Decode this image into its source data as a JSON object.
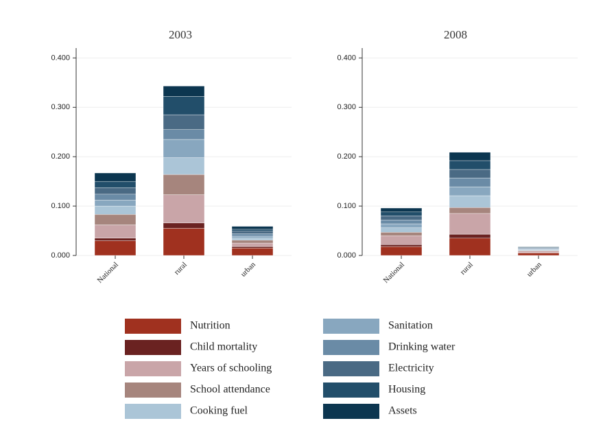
{
  "chart_data": [
    {
      "type": "bar",
      "stacked": true,
      "title": "2003",
      "categories": [
        "National",
        "rural",
        "urban"
      ],
      "ylim": [
        0,
        0.42
      ],
      "yticks": [
        {
          "value": 0,
          "label": "0.000"
        },
        {
          "value": 0.1,
          "label": "0.100"
        },
        {
          "value": 0.2,
          "label": "0.200"
        },
        {
          "value": 0.3,
          "label": "0.300"
        },
        {
          "value": 0.4,
          "label": "0.400"
        }
      ],
      "grid": true,
      "series": [
        {
          "name": "Nutrition",
          "color": "#a0311f",
          "values": [
            0.03,
            0.055,
            0.015
          ]
        },
        {
          "name": "Child mortality",
          "color": "#6a2221",
          "values": [
            0.005,
            0.011,
            0.003
          ]
        },
        {
          "name": "Years of schooling",
          "color": "#c9a5a8",
          "values": [
            0.027,
            0.057,
            0.007
          ]
        },
        {
          "name": "School attendance",
          "color": "#a6857d",
          "values": [
            0.021,
            0.041,
            0.006
          ]
        },
        {
          "name": "Cooking fuel",
          "color": "#abc5d7",
          "values": [
            0.017,
            0.034,
            0.004
          ]
        },
        {
          "name": "Sanitation",
          "color": "#88a7bf",
          "values": [
            0.012,
            0.037,
            0.004
          ]
        },
        {
          "name": "Drinking water",
          "color": "#6a8ba6",
          "values": [
            0.012,
            0.02,
            0.005
          ]
        },
        {
          "name": "Electricity",
          "color": "#4a6a84",
          "values": [
            0.013,
            0.03,
            0.005
          ]
        },
        {
          "name": "Housing",
          "color": "#224e6a",
          "values": [
            0.013,
            0.037,
            0.004
          ]
        },
        {
          "name": "Assets",
          "color": "#0c3650",
          "values": [
            0.017,
            0.021,
            0.006
          ]
        }
      ]
    },
    {
      "type": "bar",
      "stacked": true,
      "title": "2008",
      "categories": [
        "National",
        "rural",
        "urban"
      ],
      "ylim": [
        0,
        0.42
      ],
      "yticks": [
        {
          "value": 0,
          "label": "0.000"
        },
        {
          "value": 0.1,
          "label": "0.100"
        },
        {
          "value": 0.2,
          "label": "0.200"
        },
        {
          "value": 0.3,
          "label": "0.300"
        },
        {
          "value": 0.4,
          "label": "0.400"
        }
      ],
      "grid": true,
      "series": [
        {
          "values": [
            0.018,
            0.035,
            0.005
          ]
        },
        {
          "values": [
            0.004,
            0.008,
            0.001
          ]
        },
        {
          "values": [
            0.018,
            0.042,
            0.003
          ]
        },
        {
          "values": [
            0.007,
            0.012,
            0.001
          ]
        },
        {
          "values": [
            0.009,
            0.024,
            0.002
          ]
        },
        {
          "values": [
            0.008,
            0.018,
            0.001
          ]
        },
        {
          "values": [
            0.008,
            0.018,
            0.002
          ]
        },
        {
          "values": [
            0.008,
            0.017,
            0.001
          ]
        },
        {
          "values": [
            0.008,
            0.018,
            0.001
          ]
        },
        {
          "values": [
            0.008,
            0.017,
            0.001
          ]
        }
      ]
    }
  ]
}
